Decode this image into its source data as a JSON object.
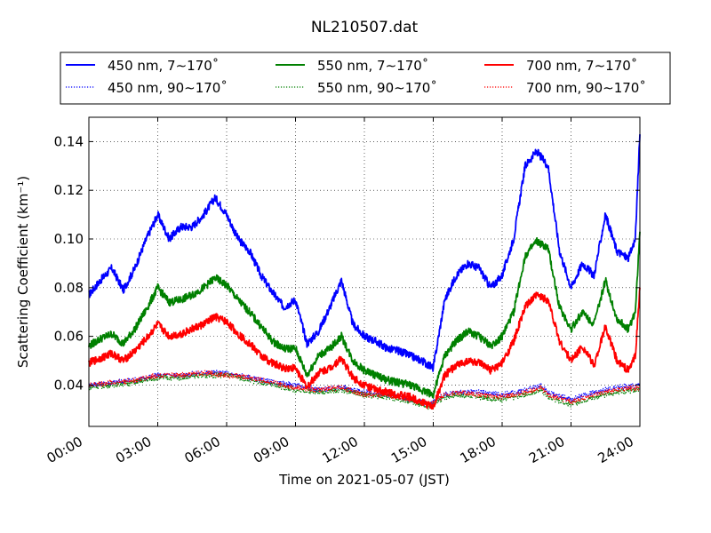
{
  "chart_data": {
    "type": "line",
    "title": "NL210507.dat",
    "xlabel": "Time on 2021-05-07 (JST)",
    "ylabel": "Scattering Coefficient (km⁻¹)",
    "xlim": [
      0,
      24
    ],
    "ylim": [
      0.023,
      0.15
    ],
    "x_ticks": [
      0,
      3,
      6,
      9,
      12,
      15,
      18,
      21,
      24
    ],
    "x_tick_labels": [
      "00:00",
      "03:00",
      "06:00",
      "09:00",
      "12:00",
      "15:00",
      "18:00",
      "21:00",
      "24:00"
    ],
    "y_ticks": [
      0.04,
      0.06,
      0.08,
      0.1,
      0.12,
      0.14
    ],
    "y_tick_labels": [
      "0.04",
      "0.06",
      "0.08",
      "0.10",
      "0.12",
      "0.14"
    ],
    "grid": true,
    "legend_placement": "top",
    "series": [
      {
        "name": "450 nm, 7∼170˚",
        "color": "#0000ff",
        "style": "solid",
        "x": [
          0,
          0.5,
          1,
          1.5,
          2,
          2.5,
          3,
          3.5,
          4,
          4.5,
          5,
          5.5,
          6,
          6.5,
          7,
          7.5,
          8,
          8.5,
          9,
          9.5,
          10,
          10.5,
          11,
          11.5,
          12,
          12.5,
          13,
          13.5,
          14,
          14.5,
          15,
          15.5,
          16,
          16.5,
          17,
          17.5,
          18,
          18.5,
          19,
          19.5,
          20,
          20.5,
          21,
          21.5,
          22,
          22.5,
          23,
          23.5,
          23.8,
          24
        ],
        "y": [
          0.077,
          0.083,
          0.088,
          0.079,
          0.088,
          0.1,
          0.11,
          0.1,
          0.105,
          0.105,
          0.11,
          0.117,
          0.11,
          0.1,
          0.095,
          0.085,
          0.078,
          0.072,
          0.075,
          0.057,
          0.062,
          0.072,
          0.083,
          0.065,
          0.06,
          0.058,
          0.055,
          0.054,
          0.052,
          0.05,
          0.047,
          0.075,
          0.085,
          0.09,
          0.088,
          0.08,
          0.085,
          0.1,
          0.13,
          0.136,
          0.13,
          0.095,
          0.08,
          0.09,
          0.085,
          0.11,
          0.095,
          0.092,
          0.1,
          0.143
        ]
      },
      {
        "name": "450 nm, 90∼170˚",
        "color": "#0000ff",
        "style": "dotted",
        "x": [
          0,
          1,
          2,
          3,
          4,
          5,
          6,
          7,
          8,
          9,
          10,
          11,
          12,
          13,
          14,
          14.8,
          15.5,
          16,
          17,
          18,
          19,
          19.7,
          20,
          21,
          22,
          23,
          24
        ],
        "y": [
          0.04,
          0.041,
          0.042,
          0.044,
          0.044,
          0.045,
          0.045,
          0.043,
          0.041,
          0.04,
          0.038,
          0.039,
          0.037,
          0.036,
          0.034,
          0.032,
          0.036,
          0.037,
          0.037,
          0.036,
          0.038,
          0.04,
          0.037,
          0.034,
          0.037,
          0.039,
          0.04
        ]
      },
      {
        "name": "550 nm, 7∼170˚",
        "color": "#008000",
        "style": "solid",
        "x": [
          0,
          0.5,
          1,
          1.5,
          2,
          2.5,
          3,
          3.5,
          4,
          4.5,
          5,
          5.5,
          6,
          6.5,
          7,
          7.5,
          8,
          8.5,
          9,
          9.5,
          10,
          10.5,
          11,
          11.5,
          12,
          12.5,
          13,
          13.5,
          14,
          14.5,
          15,
          15.5,
          16,
          16.5,
          17,
          17.5,
          18,
          18.5,
          19,
          19.5,
          20,
          20.5,
          21,
          21.5,
          22,
          22.5,
          23,
          23.5,
          23.8,
          24
        ],
        "y": [
          0.056,
          0.059,
          0.061,
          0.057,
          0.063,
          0.071,
          0.08,
          0.074,
          0.075,
          0.077,
          0.08,
          0.084,
          0.081,
          0.075,
          0.07,
          0.064,
          0.058,
          0.055,
          0.055,
          0.044,
          0.052,
          0.055,
          0.06,
          0.05,
          0.046,
          0.044,
          0.042,
          0.041,
          0.04,
          0.038,
          0.036,
          0.052,
          0.058,
          0.062,
          0.06,
          0.056,
          0.06,
          0.07,
          0.093,
          0.099,
          0.096,
          0.072,
          0.063,
          0.07,
          0.065,
          0.083,
          0.067,
          0.063,
          0.07,
          0.103
        ]
      },
      {
        "name": "550 nm, 90∼170˚",
        "color": "#008000",
        "style": "dotted",
        "x": [
          0,
          1,
          2,
          3,
          4,
          5,
          6,
          7,
          8,
          9,
          10,
          11,
          12,
          13,
          14,
          14.8,
          15.5,
          16,
          17,
          18,
          19,
          19.7,
          20,
          21,
          22,
          23,
          24
        ],
        "y": [
          0.039,
          0.04,
          0.041,
          0.043,
          0.043,
          0.044,
          0.044,
          0.042,
          0.04,
          0.038,
          0.037,
          0.038,
          0.036,
          0.035,
          0.033,
          0.031,
          0.035,
          0.036,
          0.035,
          0.034,
          0.036,
          0.038,
          0.035,
          0.032,
          0.035,
          0.037,
          0.038
        ]
      },
      {
        "name": "700 nm, 7∼170˚",
        "color": "#ff0000",
        "style": "solid",
        "x": [
          0,
          0.5,
          1,
          1.5,
          2,
          2.5,
          3,
          3.5,
          4,
          4.5,
          5,
          5.5,
          6,
          6.5,
          7,
          7.5,
          8,
          8.5,
          9,
          9.5,
          10,
          10.5,
          11,
          11.5,
          12,
          12.5,
          13,
          13.5,
          14,
          14.5,
          15,
          15.5,
          16,
          16.5,
          17,
          17.5,
          18,
          18.5,
          19,
          19.5,
          20,
          20.5,
          21,
          21.5,
          22,
          22.5,
          23,
          23.5,
          23.8,
          24
        ],
        "y": [
          0.049,
          0.051,
          0.053,
          0.05,
          0.054,
          0.059,
          0.065,
          0.06,
          0.061,
          0.063,
          0.065,
          0.068,
          0.066,
          0.061,
          0.057,
          0.052,
          0.049,
          0.047,
          0.047,
          0.039,
          0.045,
          0.047,
          0.051,
          0.043,
          0.04,
          0.038,
          0.037,
          0.036,
          0.035,
          0.033,
          0.031,
          0.044,
          0.048,
          0.05,
          0.049,
          0.046,
          0.049,
          0.058,
          0.072,
          0.077,
          0.075,
          0.058,
          0.05,
          0.056,
          0.048,
          0.064,
          0.05,
          0.046,
          0.052,
          0.08
        ]
      },
      {
        "name": "700 nm, 90∼170˚",
        "color": "#ff0000",
        "style": "dotted",
        "x": [
          0,
          1,
          2,
          3,
          4,
          5,
          6,
          7,
          8,
          9,
          10,
          11,
          12,
          13,
          14,
          14.8,
          15.5,
          16,
          17,
          18,
          19,
          19.7,
          20,
          21,
          22,
          23,
          24
        ],
        "y": [
          0.04,
          0.041,
          0.042,
          0.044,
          0.044,
          0.045,
          0.044,
          0.043,
          0.041,
          0.039,
          0.038,
          0.039,
          0.036,
          0.036,
          0.034,
          0.032,
          0.036,
          0.037,
          0.036,
          0.035,
          0.037,
          0.039,
          0.036,
          0.033,
          0.036,
          0.038,
          0.039
        ]
      }
    ]
  }
}
